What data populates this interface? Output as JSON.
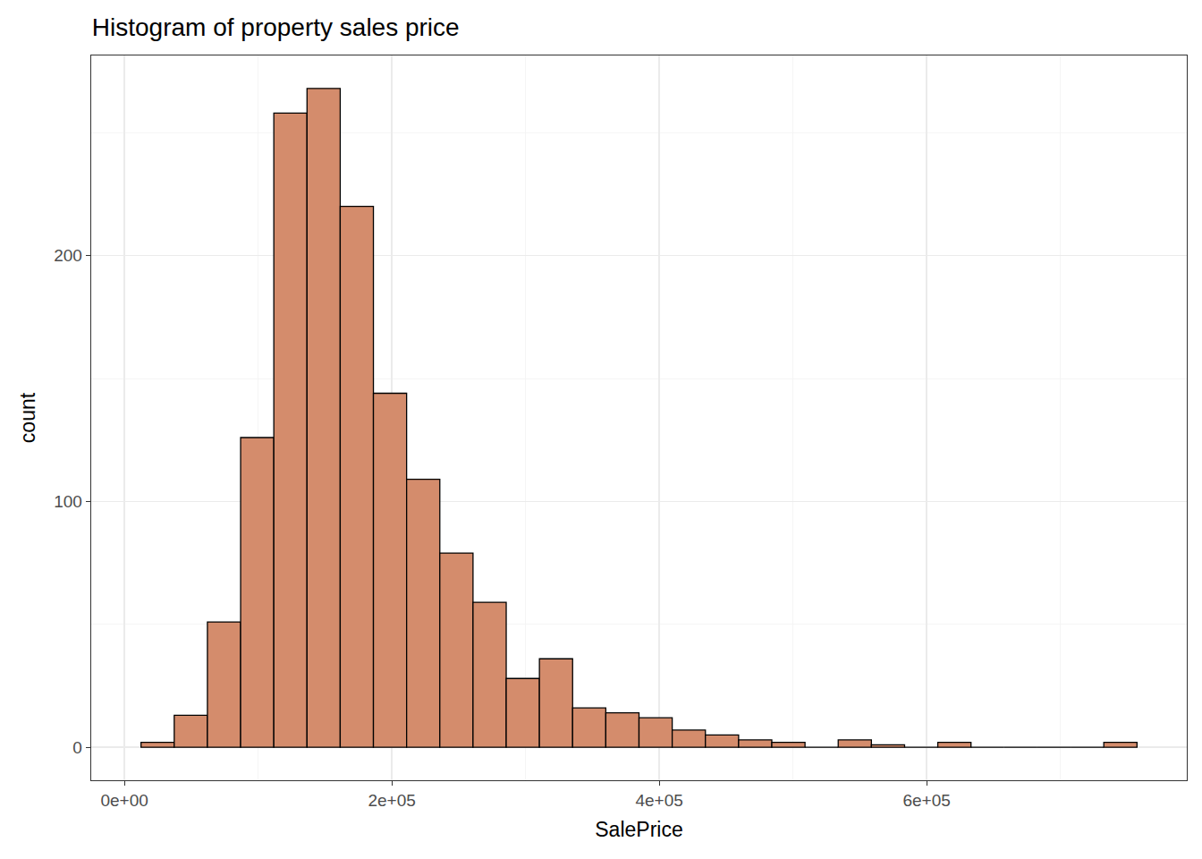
{
  "chart_data": {
    "type": "histogram",
    "title": "Histogram of property sales price",
    "x_label": "SalePrice",
    "y_label": "count",
    "bins": [
      12415.5,
      37246.5,
      62077.5,
      86908.5,
      111739.5,
      136570.5,
      161401.5,
      186232.5,
      211063.5,
      235894.5,
      260725.5,
      285556.5,
      310387.5,
      335218.5,
      360049.5,
      384880.5,
      409711.5,
      434542.5,
      459373.5,
      484204.5,
      509035.5,
      533866.5,
      558697.5,
      583528.5,
      608359.5,
      633190.5,
      658021.5,
      682852.5,
      707683.5,
      732514.5,
      757345.5
    ],
    "values": [
      2,
      13,
      51,
      126,
      258,
      268,
      220,
      144,
      109,
      79,
      59,
      28,
      36,
      16,
      14,
      12,
      7,
      5,
      3,
      2,
      0,
      3,
      1,
      0,
      2,
      0,
      0,
      0,
      0,
      2
    ],
    "color": "#d48c6c",
    "xlim": [
      -24831,
      794592
    ],
    "xticks": [
      {
        "value": 0,
        "label": "0e+00"
      },
      {
        "value": 200000,
        "label": "2e+05"
      },
      {
        "value": 400000,
        "label": "4e+05"
      },
      {
        "value": 600000,
        "label": "6e+05"
      }
    ],
    "ylim": [
      -13.4,
      281.4
    ],
    "yticks": [
      0,
      100,
      200
    ],
    "grid": true
  }
}
